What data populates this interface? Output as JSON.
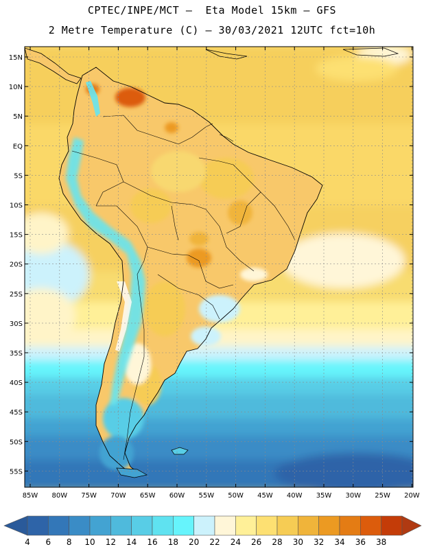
{
  "header": {
    "line1": "CPTEC/INPE/MCT –  Eta Model 15km – GFS",
    "line2": "2 Metre Temperature (C) – 30/03/2021 12UTC fct=10h"
  },
  "map": {
    "lat_labels": [
      "15N",
      "10N",
      "5N",
      "EQ",
      "5S",
      "10S",
      "15S",
      "20S",
      "25S",
      "30S",
      "35S",
      "40S",
      "45S",
      "50S",
      "55S"
    ],
    "lon_labels": [
      "85W",
      "80W",
      "75W",
      "70W",
      "65W",
      "60W",
      "55W",
      "50W",
      "45W",
      "40W",
      "35W",
      "30W",
      "25W",
      "20W"
    ]
  },
  "colorbar": {
    "labels": [
      "4",
      "6",
      "8",
      "10",
      "12",
      "14",
      "16",
      "18",
      "20",
      "22",
      "24",
      "26",
      "28",
      "30",
      "32",
      "34",
      "36",
      "38"
    ],
    "colors": [
      "#2e64a8",
      "#3377b8",
      "#3a8cc6",
      "#43a3d2",
      "#4fbadc",
      "#58cde6",
      "#5fe2f0",
      "#66f4fc",
      "#ccf2fc",
      "#fff6d8",
      "#fff098",
      "#fde072",
      "#f6cc54",
      "#f0b43a",
      "#ec9a22",
      "#e47c14",
      "#dc5c0c",
      "#c43c08"
    ],
    "low_color": "#2a5a9a",
    "high_color": "#b03a12"
  }
}
